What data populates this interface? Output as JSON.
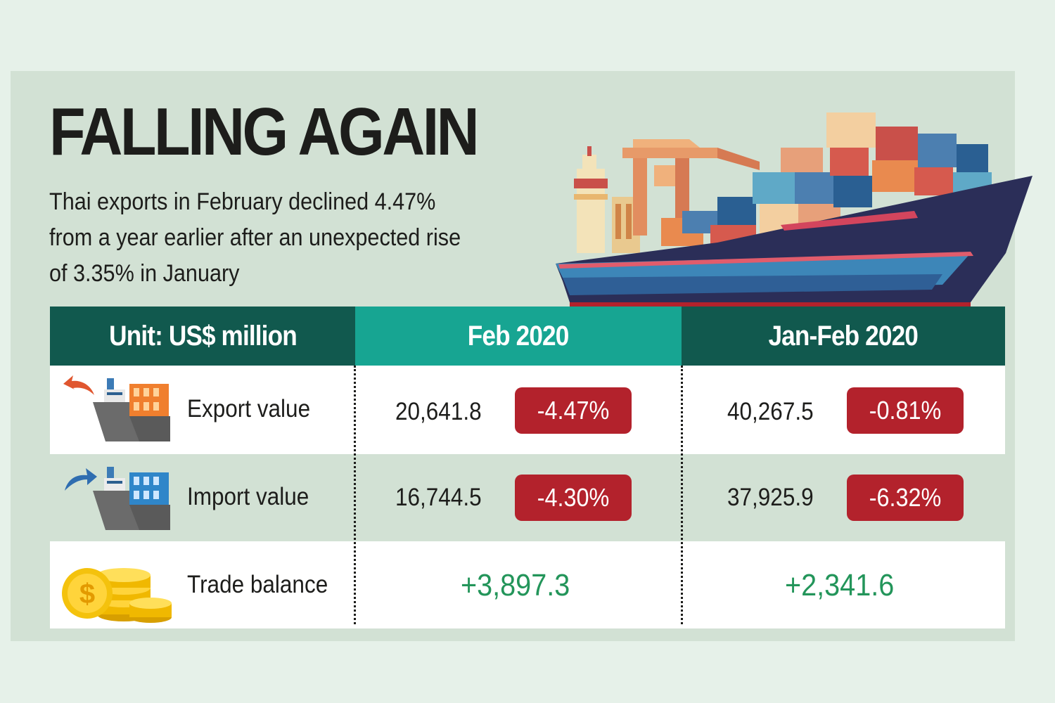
{
  "title": "FALLING AGAIN",
  "subtitle": [
    "Thai exports in February declined 4.47%",
    "from a year earlier after an unexpected rise",
    "of 3.35% in January"
  ],
  "colors": {
    "header_dark": "#11594e",
    "header_teal": "#17a592",
    "negative": "#b3222c",
    "positive": "#23955a"
  },
  "table": {
    "headers": [
      "Unit: US$ million",
      "Feb 2020",
      "Jan-Feb 2020"
    ],
    "rows": [
      {
        "label": "Export value",
        "icon": "export-ship-icon",
        "feb_value": "20,641.8",
        "feb_change": "-4.47%",
        "janfeb_value": "40,267.5",
        "janfeb_change": "-0.81%"
      },
      {
        "label": "Import value",
        "icon": "import-ship-icon",
        "feb_value": "16,744.5",
        "feb_change": "-4.30%",
        "janfeb_value": "37,925.9",
        "janfeb_change": "-6.32%"
      },
      {
        "label": "Trade balance",
        "icon": "coins-icon",
        "feb_value": "+3,897.3",
        "janfeb_value": "+2,341.6"
      }
    ]
  }
}
